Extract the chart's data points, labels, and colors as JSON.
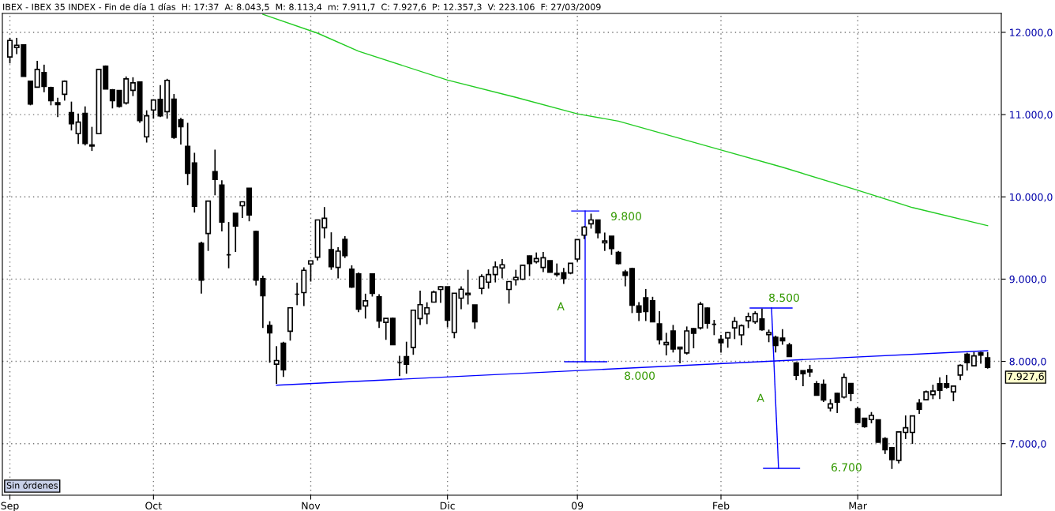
{
  "chart_data": {
    "type": "candlestick",
    "title": "IBEX - IBEX 35 INDEX - Fin de día 1 días  H: 17:37  A: 8.043,5  M: 8.113,4  m: 7.911,7  C: 7.927,6  P: 12.357,3  V: 223.106  F: 27/03/2009",
    "categories": [
      "Sep",
      null,
      null,
      null,
      null,
      null,
      null,
      null,
      null,
      null,
      null,
      null,
      null,
      null,
      null,
      null,
      null,
      null,
      null,
      null,
      null,
      "Oct",
      null,
      null,
      null,
      null,
      null,
      null,
      null,
      null,
      null,
      null,
      null,
      null,
      null,
      null,
      null,
      null,
      null,
      null,
      null,
      null,
      null,
      null,
      "Nov",
      null,
      null,
      null,
      null,
      null,
      null,
      null,
      null,
      null,
      null,
      null,
      null,
      null,
      null,
      null,
      null,
      null,
      null,
      null,
      "Dic",
      null,
      null,
      null,
      null,
      null,
      null,
      null,
      null,
      null,
      null,
      null,
      null,
      null,
      null,
      null,
      null,
      null,
      null,
      "09",
      null,
      null,
      null,
      null,
      null,
      null,
      null,
      null,
      null,
      null,
      null,
      null,
      null,
      null,
      null,
      null,
      null,
      null,
      null,
      null,
      "Feb",
      null,
      null,
      null,
      null,
      null,
      null,
      null,
      null,
      null,
      null,
      null,
      null,
      null,
      null,
      null,
      null,
      null,
      null,
      null,
      "Mar",
      null,
      null,
      null,
      null,
      null,
      null,
      null,
      null,
      null,
      null,
      null,
      null,
      null,
      null,
      null,
      null,
      null,
      null,
      null
    ],
    "ohlc": [
      [
        11700,
        11933,
        11623,
        11901
      ],
      [
        11815,
        11933,
        11735,
        11843
      ],
      [
        11847,
        11853,
        11464,
        11464
      ],
      [
        11406,
        11406,
        11113,
        11129
      ],
      [
        11333,
        11655,
        11333,
        11550
      ],
      [
        11512,
        11607,
        11272,
        11343
      ],
      [
        11330,
        11339,
        11113,
        11170
      ],
      [
        11145,
        11205,
        10969,
        11122
      ],
      [
        11247,
        11416,
        11170,
        11406
      ],
      [
        11024,
        11158,
        10807,
        10890
      ],
      [
        10768,
        11014,
        10644,
        10909
      ],
      [
        11014,
        11100,
        10625,
        10650
      ],
      [
        10631,
        10851,
        10558,
        10618
      ],
      [
        10768,
        11550,
        10768,
        11550
      ],
      [
        11588,
        11598,
        11311,
        11311
      ],
      [
        11301,
        11311,
        11075,
        11170
      ],
      [
        11292,
        11292,
        11084,
        11100
      ],
      [
        11142,
        11464,
        11122,
        11435
      ],
      [
        11295,
        11454,
        11225,
        11387
      ],
      [
        11397,
        11397,
        10899,
        10928
      ],
      [
        10730,
        11052,
        10660,
        10985
      ],
      [
        11056,
        11177,
        10950,
        11177
      ],
      [
        11186,
        11358,
        10969,
        10985
      ],
      [
        11036,
        11435,
        10950,
        11416
      ],
      [
        11187,
        11250,
        10705,
        10724
      ],
      [
        10938,
        10960,
        10635,
        10852
      ],
      [
        10613,
        10900,
        10144,
        10287
      ],
      [
        10412,
        10536,
        9809,
        9885
      ],
      [
        9436,
        9455,
        8823,
        8989
      ],
      [
        9554,
        9949,
        9343,
        9949
      ],
      [
        10306,
        10574,
        10019,
        10211
      ],
      [
        10144,
        10201,
        9579,
        9694
      ],
      [
        9295,
        9694,
        9132,
        9295
      ],
      [
        9799,
        9799,
        9330,
        9646
      ],
      [
        9892,
        9940,
        9742,
        9940
      ],
      [
        10105,
        10105,
        9703,
        9780
      ],
      [
        9579,
        9589,
        8922,
        8989
      ],
      [
        9005,
        9043,
        8405,
        8798
      ],
      [
        8437,
        8488,
        7984,
        8348
      ],
      [
        7965,
        8185,
        7726,
        8010
      ],
      [
        8220,
        8239,
        7812,
        7898
      ],
      [
        8367,
        8651,
        8252,
        8651
      ],
      [
        8817,
        8957,
        8683,
        8817
      ],
      [
        8836,
        9142,
        8673,
        9107
      ],
      [
        9184,
        9222,
        8970,
        9222
      ],
      [
        9266,
        9719,
        9228,
        9719
      ],
      [
        9624,
        9876,
        9496,
        9739
      ],
      [
        9359,
        9569,
        9113,
        9152
      ],
      [
        9142,
        9388,
        9008,
        9340
      ],
      [
        9483,
        9522,
        9257,
        9286
      ],
      [
        9120,
        9168,
        8893,
        8903
      ],
      [
        9062,
        9081,
        8597,
        8635
      ],
      [
        8673,
        8823,
        8520,
        8737
      ],
      [
        9062,
        9062,
        8788,
        8826
      ],
      [
        8785,
        8817,
        8405,
        8491
      ],
      [
        8475,
        8523,
        8262,
        8523
      ],
      [
        8523,
        8533,
        8204,
        8204
      ],
      [
        7984,
        8067,
        7821,
        7984
      ],
      [
        8057,
        8239,
        7850,
        7965
      ],
      [
        8169,
        8622,
        8080,
        8622
      ],
      [
        8520,
        8861,
        8443,
        8689
      ],
      [
        8577,
        8718,
        8453,
        8651
      ],
      [
        8721,
        8861,
        8721,
        8842
      ],
      [
        8874,
        8912,
        8711,
        8906
      ],
      [
        8906,
        8906,
        8415,
        8501
      ],
      [
        8351,
        8829,
        8281,
        8829
      ],
      [
        8769,
        8912,
        8635,
        8877
      ],
      [
        8810,
        9113,
        8692,
        8829
      ],
      [
        8686,
        8686,
        8396,
        8482
      ],
      [
        8887,
        9059,
        8817,
        9030
      ],
      [
        8963,
        9120,
        8884,
        9056
      ],
      [
        9056,
        9215,
        8960,
        9148
      ],
      [
        9136,
        9244,
        9008,
        9174
      ],
      [
        8874,
        8970,
        8702,
        8970
      ],
      [
        8992,
        9113,
        8922,
        9021
      ],
      [
        8999,
        9168,
        8989,
        9168
      ],
      [
        9282,
        9286,
        9037,
        9190
      ],
      [
        9212,
        9324,
        9190,
        9250
      ],
      [
        9142,
        9330,
        9085,
        9260
      ],
      [
        9225,
        9225,
        9085,
        9085
      ],
      [
        9069,
        9190,
        9030,
        9056
      ],
      [
        9078,
        9136,
        8941,
        9008
      ],
      [
        9075,
        9196,
        9059,
        9193
      ],
      [
        9244,
        9480,
        9212,
        9480
      ],
      [
        9534,
        9646,
        9487,
        9633
      ],
      [
        9672,
        9796,
        9614,
        9719
      ],
      [
        9719,
        9719,
        9496,
        9563
      ],
      [
        9442,
        9566,
        9343,
        9464
      ],
      [
        9522,
        9522,
        9295,
        9372
      ],
      [
        9324,
        9343,
        9180,
        9190
      ],
      [
        9088,
        9113,
        8912,
        9046
      ],
      [
        9129,
        9139,
        8587,
        8683
      ],
      [
        8673,
        8721,
        8491,
        8600
      ],
      [
        8772,
        8880,
        8491,
        8606
      ],
      [
        8737,
        8785,
        8481,
        8481
      ],
      [
        8456,
        8609,
        8204,
        8264
      ],
      [
        8204,
        8347,
        8073,
        8229
      ],
      [
        8370,
        8443,
        8108,
        8150
      ],
      [
        8153,
        8172,
        7977,
        8172
      ],
      [
        8102,
        8424,
        8083,
        8370
      ],
      [
        8398,
        8405,
        8159,
        8341
      ],
      [
        8408,
        8724,
        8386,
        8695
      ],
      [
        8647,
        8657,
        8398,
        8465
      ],
      [
        8450,
        8504,
        8319,
        8450
      ],
      [
        8268,
        8322,
        8105,
        8226
      ],
      [
        8284,
        8360,
        8166,
        8351
      ],
      [
        8408,
        8539,
        8271,
        8485
      ],
      [
        8322,
        8450,
        8194,
        8434
      ],
      [
        8494,
        8593,
        8405,
        8545
      ],
      [
        8481,
        8609,
        8456,
        8580
      ],
      [
        8516,
        8641,
        8373,
        8386
      ],
      [
        8325,
        8386,
        8233,
        8351
      ],
      [
        8293,
        8313,
        8108,
        8194
      ],
      [
        8284,
        8392,
        8201,
        8252
      ],
      [
        8198,
        8226,
        8060,
        8060
      ],
      [
        7981,
        7990,
        7773,
        7831
      ],
      [
        7888,
        7888,
        7697,
        7850
      ],
      [
        7898,
        7958,
        7812,
        7872
      ],
      [
        7729,
        7761,
        7588,
        7588
      ],
      [
        7722,
        7780,
        7505,
        7531
      ],
      [
        7432,
        7541,
        7391,
        7483
      ],
      [
        7611,
        7617,
        7372,
        7505
      ],
      [
        7566,
        7853,
        7550,
        7805
      ],
      [
        7732,
        7732,
        7515,
        7611
      ],
      [
        7423,
        7448,
        7257,
        7257
      ],
      [
        7308,
        7314,
        7193,
        7206
      ],
      [
        7292,
        7384,
        7247,
        7343
      ],
      [
        7289,
        7289,
        7017,
        7017
      ],
      [
        7062,
        7078,
        6874,
        6925
      ],
      [
        6950,
        6960,
        6692,
        6807
      ],
      [
        6797,
        7148,
        6759,
        7142
      ],
      [
        7136,
        7343,
        7056,
        7193
      ],
      [
        7136,
        7337,
        6998,
        7337
      ],
      [
        7493,
        7541,
        7362,
        7419
      ],
      [
        7534,
        7646,
        7525,
        7630
      ],
      [
        7595,
        7716,
        7541,
        7639
      ],
      [
        7729,
        7805,
        7541,
        7649
      ],
      [
        7729,
        7834,
        7668,
        7687
      ],
      [
        7630,
        7700,
        7515,
        7700
      ],
      [
        7834,
        7965,
        7773,
        7952
      ],
      [
        8086,
        8105,
        7888,
        7984
      ],
      [
        7946,
        8115,
        7946,
        8067
      ],
      [
        8105,
        8115,
        7971,
        8076
      ],
      [
        8043.5,
        8113.4,
        7911.7,
        7927.6
      ]
    ],
    "series": [
      {
        "type": "line",
        "color": "#22cc22",
        "values": [
          null,
          null,
          null,
          null,
          null,
          null,
          null,
          null,
          null,
          null,
          null,
          null,
          null,
          null,
          null,
          null,
          null,
          null,
          null,
          null,
          null,
          null,
          null,
          null,
          null,
          null,
          null,
          null,
          null,
          null,
          null,
          null,
          null,
          null,
          null,
          null,
          null,
          12220,
          null,
          null,
          null,
          null,
          null,
          null,
          null,
          11990,
          null,
          null,
          null,
          null,
          null,
          11770,
          null,
          null,
          null,
          null,
          null,
          null,
          null,
          null,
          null,
          null,
          null,
          null,
          11420,
          null,
          null,
          null,
          null,
          null,
          null,
          null,
          null,
          null,
          11210,
          null,
          null,
          null,
          null,
          null,
          null,
          null,
          null,
          11010,
          null,
          null,
          null,
          null,
          null,
          10920,
          null,
          null,
          null,
          null,
          null,
          null,
          null,
          null,
          null,
          null,
          null,
          null,
          null,
          null,
          10570,
          null,
          null,
          null,
          null,
          null,
          null,
          null,
          null,
          10360,
          null,
          null,
          null,
          null,
          null,
          null,
          null,
          null,
          null,
          null,
          10080,
          null,
          null,
          null,
          null,
          null,
          null,
          null,
          9870,
          null,
          null,
          null,
          null,
          null,
          null,
          null,
          null,
          null,
          null,
          9650
        ]
      },
      {
        "type": "line",
        "color": "#0000ff",
        "values": [
          null,
          null,
          null,
          null,
          null,
          null,
          null,
          null,
          null,
          null,
          null,
          null,
          null,
          null,
          null,
          null,
          null,
          null,
          null,
          null,
          null,
          null,
          null,
          null,
          null,
          null,
          null,
          null,
          null,
          null,
          null,
          null,
          null,
          null,
          null,
          null,
          null,
          null,
          null,
          7710,
          null,
          null,
          null,
          null,
          null,
          null,
          null,
          null,
          null,
          null,
          null,
          null,
          null,
          null,
          null,
          null,
          null,
          null,
          null,
          null,
          null,
          null,
          null,
          null,
          null,
          null,
          null,
          null,
          null,
          null,
          null,
          null,
          null,
          null,
          null,
          null,
          null,
          null,
          null,
          null,
          null,
          null,
          null,
          null,
          null,
          null,
          null,
          null,
          null,
          null,
          null,
          null,
          null,
          null,
          null,
          null,
          null,
          null,
          null,
          null,
          null,
          null,
          null,
          null,
          null,
          null,
          null,
          null,
          null,
          null,
          null,
          null,
          null,
          null,
          null,
          null,
          null,
          null,
          null,
          null,
          null,
          null,
          null,
          null,
          null,
          null,
          null,
          null,
          null,
          null,
          null,
          null,
          null,
          null,
          null,
          null,
          null,
          null,
          null,
          null,
          null,
          null,
          null,
          8130
        ]
      }
    ],
    "annotations": [
      "9.800",
      "A",
      "8.000",
      "8.500",
      "A",
      "6.700",
      "7.927,6",
      "Sin órdenes"
    ],
    "ylim": [
      6373,
      12230
    ],
    "yticks": [
      {
        "value": 7000,
        "label": "7.000,0"
      },
      {
        "value": 8000,
        "label": "8.000,0"
      },
      {
        "value": 9000,
        "label": "9.000,0"
      },
      {
        "value": 10000,
        "label": "10.000,0"
      },
      {
        "value": 11000,
        "label": "11.000,0"
      },
      {
        "value": 12000,
        "label": "12.000,0"
      }
    ],
    "grid": true,
    "legend": false
  }
}
